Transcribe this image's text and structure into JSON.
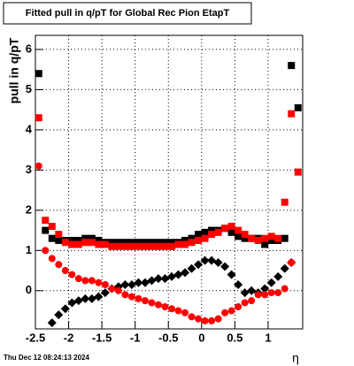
{
  "chart_data": {
    "type": "scatter",
    "title": "Fitted pull in q/pT for Global Rec Pion EtapT",
    "y_label": "pull in q/pT",
    "x_label": "η",
    "date_stamp": "Thu Dec 12 08:24:13 2024",
    "x": [
      -2.45,
      -2.35,
      -2.25,
      -2.15,
      -2.05,
      -1.95,
      -1.85,
      -1.75,
      -1.65,
      -1.55,
      -1.45,
      -1.35,
      -1.25,
      -1.15,
      -1.05,
      -0.95,
      -0.85,
      -0.75,
      -0.65,
      -0.55,
      -0.45,
      -0.35,
      -0.25,
      -0.15,
      -0.05,
      0.05,
      0.15,
      0.25,
      0.35,
      0.45,
      0.55,
      0.65,
      0.75,
      0.85,
      0.95,
      1.05,
      1.15,
      1.25,
      1.35,
      1.45
    ],
    "series": [
      {
        "color": "#000000",
        "marker": "square",
        "values": [
          5.4,
          1.5,
          1.3,
          1.25,
          1.25,
          1.25,
          1.25,
          1.3,
          1.3,
          1.25,
          1.2,
          1.2,
          1.2,
          1.2,
          1.2,
          1.2,
          1.2,
          1.2,
          1.2,
          1.2,
          1.2,
          1.2,
          1.25,
          1.3,
          1.4,
          1.45,
          1.5,
          1.5,
          1.55,
          1.45,
          1.35,
          1.3,
          1.3,
          1.3,
          1.15,
          1.25,
          1.25,
          1.3,
          5.6,
          4.55
        ]
      },
      {
        "color": "#ff0000",
        "marker": "square",
        "values": [
          4.3,
          1.75,
          1.6,
          1.4,
          1.2,
          1.15,
          1.15,
          1.2,
          1.2,
          1.15,
          1.15,
          1.1,
          1.1,
          1.1,
          1.1,
          1.1,
          1.1,
          1.1,
          1.1,
          1.1,
          1.1,
          1.15,
          1.15,
          1.2,
          1.25,
          1.3,
          1.4,
          1.45,
          1.55,
          1.6,
          1.5,
          1.4,
          1.3,
          1.25,
          1.3,
          1.35,
          1.3,
          2.2,
          4.4,
          2.95
        ]
      },
      {
        "color": "#000000",
        "marker": "diamond",
        "values": [
          null,
          null,
          -0.8,
          -0.6,
          -0.45,
          -0.3,
          -0.25,
          -0.2,
          -0.2,
          -0.15,
          -0.05,
          0.05,
          0.1,
          0.15,
          0.15,
          0.2,
          0.2,
          0.25,
          0.3,
          0.3,
          0.35,
          0.4,
          0.45,
          0.55,
          0.65,
          0.75,
          0.75,
          0.7,
          0.6,
          0.4,
          0.15,
          -0.05,
          0.0,
          -0.05,
          0.05,
          0.2,
          0.35,
          0.55,
          0.7,
          null
        ]
      },
      {
        "color": "#ff0000",
        "marker": "circle",
        "values": [
          3.1,
          1.0,
          0.8,
          0.65,
          0.5,
          0.4,
          0.3,
          0.25,
          0.25,
          0.2,
          0.15,
          0.05,
          0.0,
          -0.1,
          -0.15,
          -0.2,
          -0.25,
          -0.3,
          -0.35,
          -0.4,
          -0.45,
          -0.5,
          -0.55,
          -0.65,
          -0.7,
          -0.75,
          -0.75,
          -0.7,
          -0.55,
          -0.5,
          -0.4,
          -0.3,
          -0.25,
          -0.1,
          -0.1,
          -0.05,
          -0.05,
          0.05,
          0.7,
          null
        ]
      }
    ],
    "xlim": [
      -2.5,
      1.52
    ],
    "ylim": [
      -0.95,
      6.35
    ],
    "xticks": [
      -2.5,
      -2,
      -1.5,
      -1,
      -0.5,
      0,
      0.5,
      1
    ],
    "yticks": [
      0,
      1,
      2,
      3,
      4,
      5,
      6
    ],
    "grid": true
  }
}
